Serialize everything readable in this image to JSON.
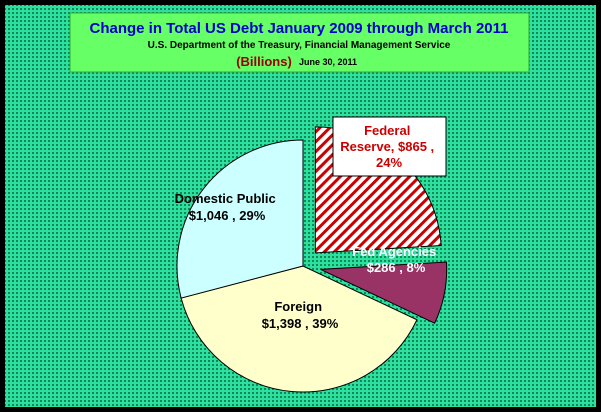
{
  "chart_data": {
    "type": "pie",
    "title": "Change in Total US Debt January 2009 through March 2011",
    "subtitle": "U.S. Department of the Treasury, Financial Management Service",
    "units": "(Billions)",
    "date": "June 30, 2011",
    "slices": [
      {
        "name": "Federal Reserve",
        "value": 865,
        "value_label": "$865",
        "percent": 24,
        "label": "Federal Reserve, $865 , 24%",
        "fill": "#ffffff",
        "pattern": "red-diagonal-hatch",
        "exploded": true
      },
      {
        "name": "Fed Agencies",
        "value": 286,
        "value_label": "$286",
        "percent": 8,
        "label": "Fed Agencies $286 , 8%",
        "fill": "#993366",
        "exploded": true
      },
      {
        "name": "Foreign",
        "value": 1398,
        "value_label": "$1,398",
        "percent": 39,
        "label": "Foreign $1,398 , 39%",
        "fill": "#ffffcc",
        "exploded": false
      },
      {
        "name": "Domestic Public",
        "value": 1046,
        "value_label": "$1,046",
        "percent": 29,
        "label": "Domestic Public $1,046 , 29%",
        "fill": "#ccffff",
        "exploded": false
      }
    ],
    "legend": "none",
    "colors": {
      "background": "#2ee0a0",
      "background_dots": "#0c8a56",
      "title_box": "#66ff66",
      "title_text": "#0000cc",
      "units_text": "#990000",
      "federal_reserve_label_text": "#cc0000",
      "hatch": "#cc0000"
    }
  }
}
